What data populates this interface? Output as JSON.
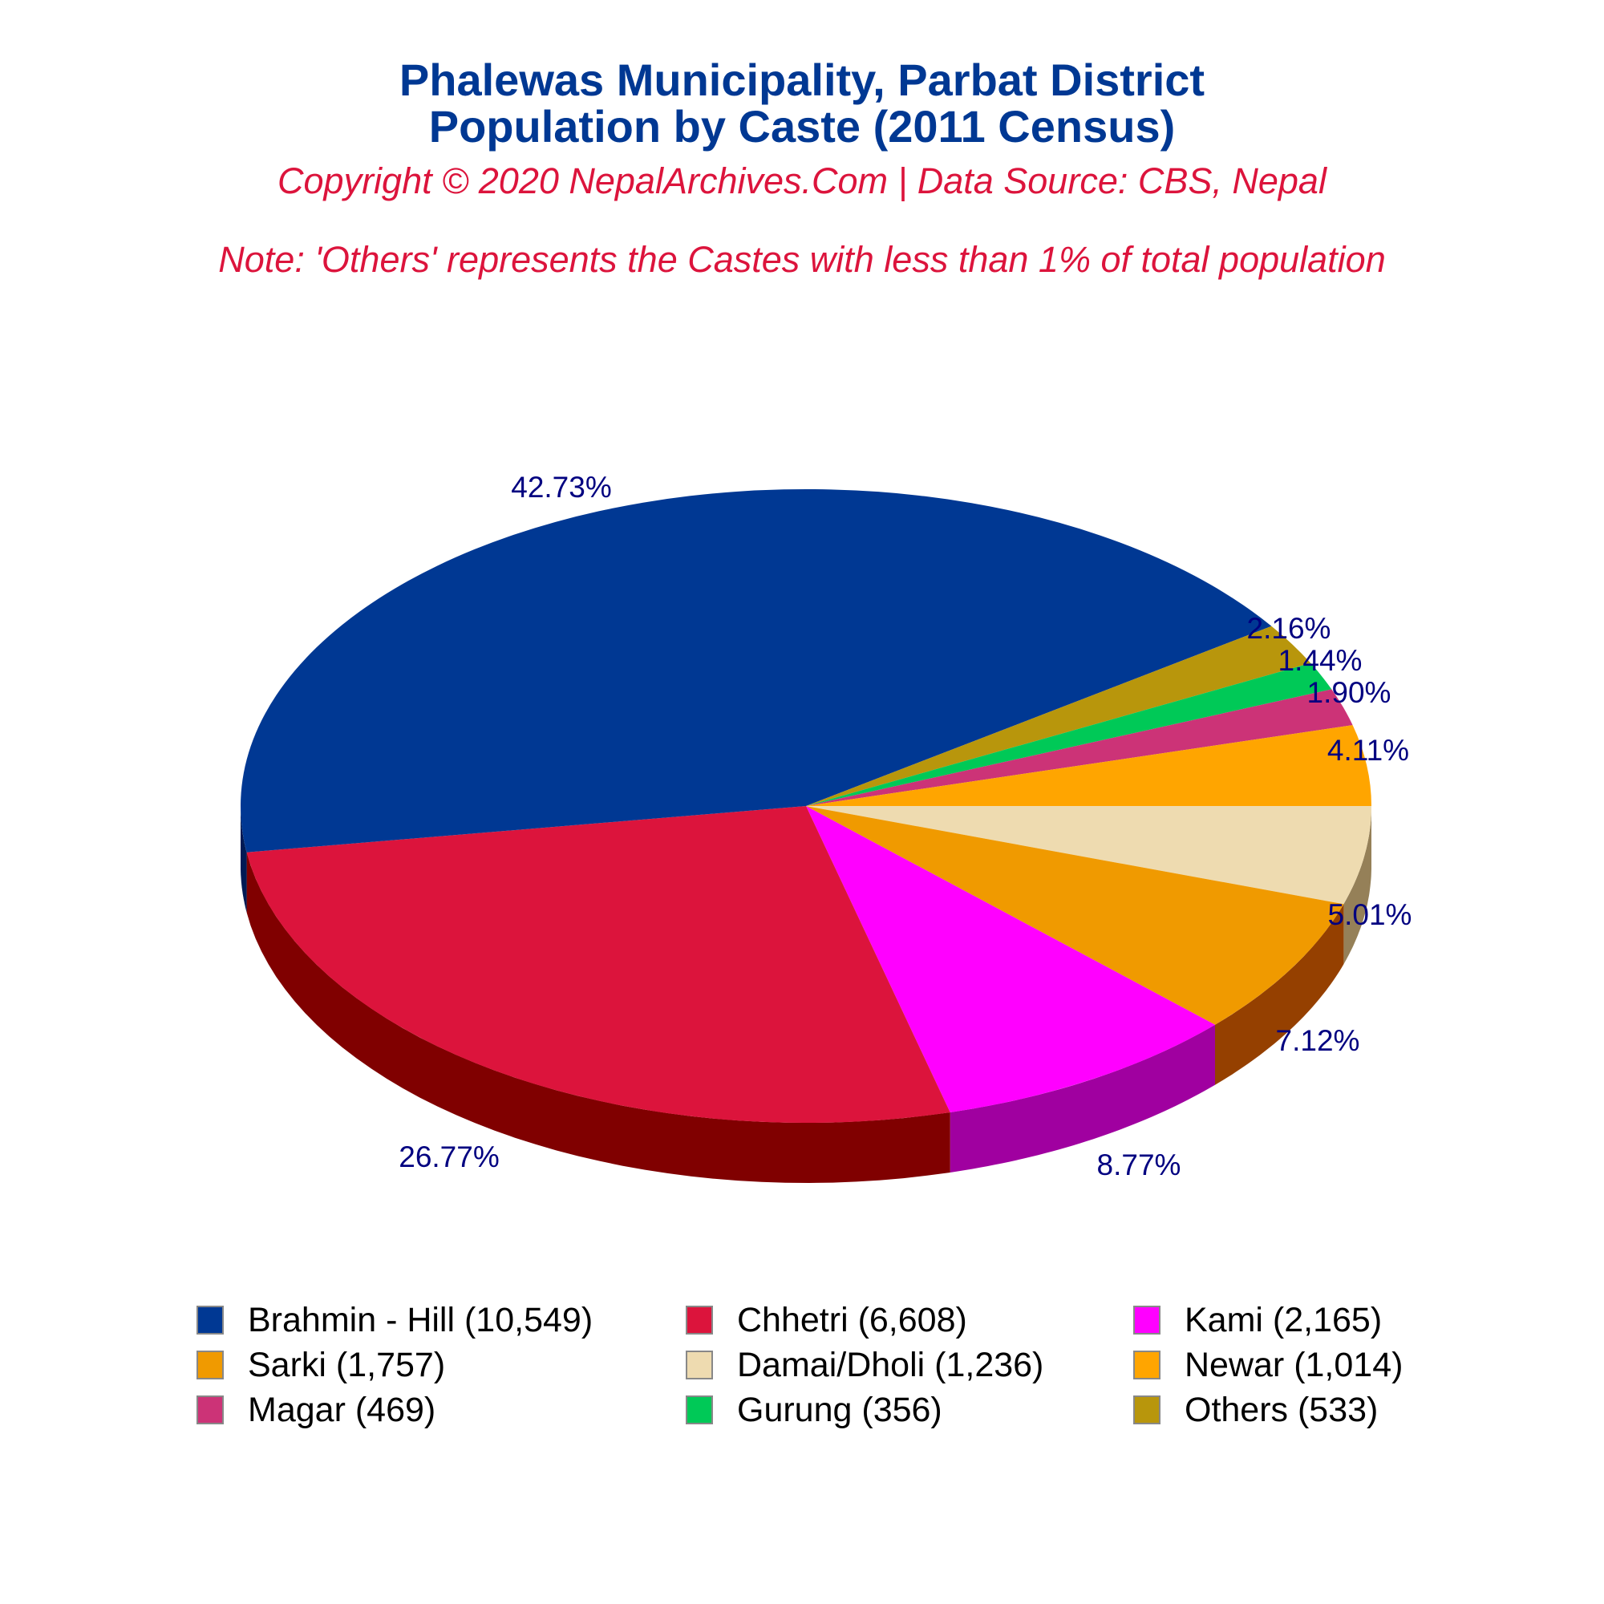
{
  "header": {
    "title_line1": "Phalewas Municipality, Parbat District",
    "title_line2": "Population by Caste (2011 Census)",
    "copyright": "Copyright © 2020 NepalArchives.Com | Data Source: CBS, Nepal",
    "note": "Note: 'Others' represents the Castes with less than 1% of total population"
  },
  "legend": [
    {
      "label": "Brahmin - Hill (10,549)",
      "color": "#003893"
    },
    {
      "label": "Chhetri (6,608)",
      "color": "#dc143c"
    },
    {
      "label": "Kami (2,165)",
      "color": "#ff00ff"
    },
    {
      "label": "Sarki (1,757)",
      "color": "#f09a00"
    },
    {
      "label": "Damai/Dholi (1,236)",
      "color": "#eedbb0"
    },
    {
      "label": "Newar (1,014)",
      "color": "#ffa500"
    },
    {
      "label": "Magar (469)",
      "color": "#cc3377"
    },
    {
      "label": "Gurung (356)",
      "color": "#00c957"
    },
    {
      "label": "Others (533)",
      "color": "#b8960c"
    }
  ],
  "chart_data": {
    "type": "pie",
    "title": "Phalewas Municipality, Parbat District — Population by Caste (2011 Census)",
    "subtitle": "Copyright © 2020 NepalArchives.Com | Data Source: CBS, Nepal",
    "annotation": "Note: 'Others' represents the Castes with less than 1% of total population",
    "legend_position": "bottom",
    "categories": [
      "Brahmin - Hill",
      "Chhetri",
      "Kami",
      "Sarki",
      "Damai/Dholi",
      "Newar",
      "Magar",
      "Gurung",
      "Others"
    ],
    "values": [
      10549,
      6608,
      2165,
      1757,
      1236,
      1014,
      469,
      356,
      533
    ],
    "percentages": [
      42.73,
      26.77,
      8.77,
      7.12,
      5.01,
      4.11,
      1.9,
      1.44,
      2.16
    ],
    "labels": [
      "42.73%",
      "26.77%",
      "8.77%",
      "7.12%",
      "5.01%",
      "4.11%",
      "1.90%",
      "1.44%",
      "2.16%"
    ],
    "colors": [
      "#003893",
      "#dc143c",
      "#ff00ff",
      "#f09a00",
      "#eedbb0",
      "#ffa500",
      "#cc3377",
      "#00c957",
      "#b8960c"
    ],
    "side_colors": [
      "#001a55",
      "#800000",
      "#a000a0",
      "#954000",
      "#958058",
      "#a06000",
      "#801f4a",
      "#007a35",
      "#705a00"
    ],
    "label_color": "#000080",
    "style": "3d"
  }
}
